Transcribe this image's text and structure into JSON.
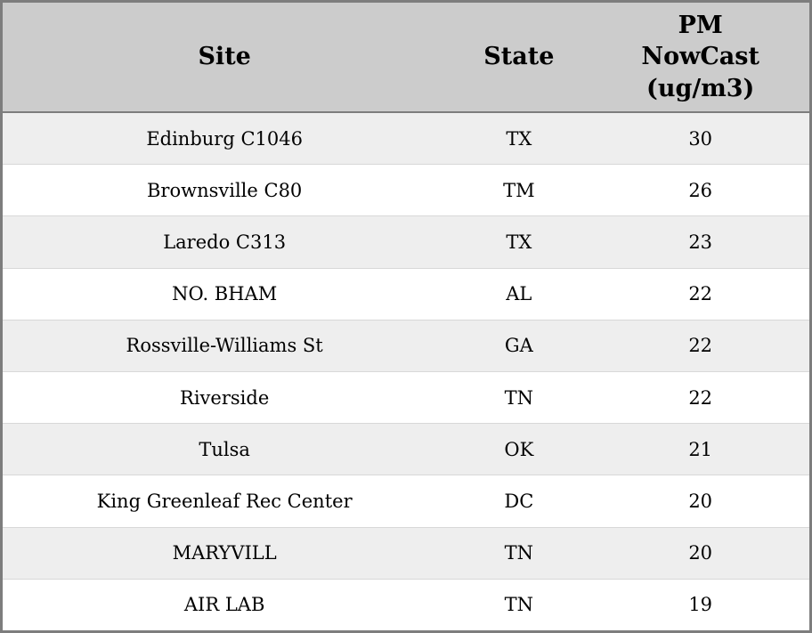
{
  "chart_data": {
    "type": "table",
    "title": "",
    "columns": [
      "Site",
      "State",
      "PM NowCast (ug/m3)"
    ],
    "rows": [
      [
        "Edinburg C1046",
        "TX",
        30
      ],
      [
        "Brownsville C80",
        "TM",
        26
      ],
      [
        "Laredo C313",
        "TX",
        23
      ],
      [
        "NO. BHAM",
        "AL",
        22
      ],
      [
        "Rossville-Williams St",
        "GA",
        22
      ],
      [
        "Riverside",
        "TN",
        22
      ],
      [
        "Tulsa",
        "OK",
        21
      ],
      [
        "King Greenleaf Rec Center",
        "DC",
        20
      ],
      [
        "MARYVILL",
        "TN",
        20
      ],
      [
        "AIR LAB",
        "TN",
        19
      ]
    ],
    "layout": {
      "zebra_striping": true,
      "header_position": "top"
    }
  },
  "colors": {
    "header_bg": "#cccccc",
    "row_odd": "#eeeeee",
    "row_even": "#ffffff",
    "border": "#7d7d7d",
    "text": "#000000"
  }
}
